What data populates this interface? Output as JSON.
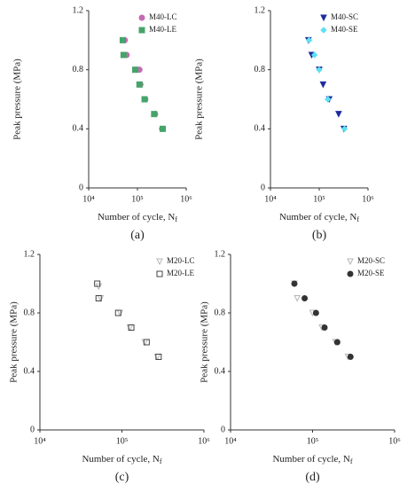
{
  "chart_data": [
    {
      "type": "scatter",
      "panel_label": "(a)",
      "xlabel": "Number of cycle, N",
      "xlabel_sub": "f",
      "ylabel": "Peak pressure (MPa)",
      "xscale": "log",
      "xlim": [
        10000,
        1000000
      ],
      "xticks": [
        {
          "value": 10000,
          "label": "10⁴"
        },
        {
          "value": 100000,
          "label": "10⁵"
        },
        {
          "value": 1000000,
          "label": "10⁶"
        }
      ],
      "ylim": [
        0,
        1.2
      ],
      "yticks": [
        0,
        0.4,
        0.8,
        1.2
      ],
      "legend": "upper right",
      "series": [
        {
          "name": "M40-LC",
          "color": "#c46bb5",
          "marker": "circle",
          "filled": true,
          "x": [
            55000,
            60000,
            110000,
            115000,
            145000,
            230000,
            320000
          ],
          "values": [
            1.0,
            0.9,
            0.8,
            0.7,
            0.6,
            0.5,
            0.4
          ]
        },
        {
          "name": "M40-LE",
          "color": "#46a46a",
          "marker": "square",
          "filled": true,
          "x": [
            50000,
            52000,
            90000,
            110000,
            140000,
            220000,
            330000
          ],
          "values": [
            1.0,
            0.9,
            0.8,
            0.7,
            0.6,
            0.5,
            0.4
          ]
        }
      ]
    },
    {
      "type": "scatter",
      "panel_label": "(b)",
      "xlabel": "Number of cycle, N",
      "xlabel_sub": "f",
      "ylabel": "Peak pressure (MPa)",
      "xscale": "log",
      "xlim": [
        10000,
        1000000
      ],
      "xticks": [
        {
          "value": 10000,
          "label": "10⁴"
        },
        {
          "value": 100000,
          "label": "10⁵"
        },
        {
          "value": 1000000,
          "label": "10⁶"
        }
      ],
      "ylim": [
        0,
        1.2
      ],
      "yticks": [
        0,
        0.4,
        0.8,
        1.2
      ],
      "legend": "upper right",
      "series": [
        {
          "name": "M40-SC",
          "color": "#1c2c9c",
          "marker": "triangle-down",
          "filled": true,
          "x": [
            60000,
            70000,
            100000,
            120000,
            160000,
            250000,
            320000
          ],
          "values": [
            1.0,
            0.9,
            0.8,
            0.7,
            0.6,
            0.5,
            0.4
          ]
        },
        {
          "name": "M40-SE",
          "color": "#5fe0f2",
          "marker": "diamond",
          "filled": true,
          "x": [
            62000,
            80000,
            100000,
            150000,
            330000
          ],
          "values": [
            1.0,
            0.9,
            0.8,
            0.6,
            0.4
          ]
        }
      ]
    },
    {
      "type": "scatter",
      "panel_label": "(c)",
      "xlabel": "Number of cycle, N",
      "xlabel_sub": "f",
      "ylabel": "Peak pressure (MPa)",
      "xscale": "log",
      "xlim": [
        10000,
        1000000
      ],
      "xticks": [
        {
          "value": 10000,
          "label": "10⁴"
        },
        {
          "value": 100000,
          "label": "10⁵"
        },
        {
          "value": 1000000,
          "label": "10⁶"
        }
      ],
      "ylim": [
        0,
        1.2
      ],
      "yticks": [
        0,
        0.4,
        0.8,
        1.2
      ],
      "legend": "upper right",
      "series": [
        {
          "name": "M20-LC",
          "color": "#b5b5b5",
          "marker": "triangle-down",
          "filled": false,
          "x": [
            52000,
            55000,
            95000,
            125000,
            190000,
            270000
          ],
          "values": [
            0.98,
            0.9,
            0.8,
            0.7,
            0.6,
            0.5
          ]
        },
        {
          "name": "M20-LE",
          "color": "#444444",
          "marker": "square",
          "filled": false,
          "x": [
            50000,
            52000,
            90000,
            130000,
            200000,
            280000
          ],
          "values": [
            1.0,
            0.9,
            0.8,
            0.7,
            0.6,
            0.5
          ]
        }
      ]
    },
    {
      "type": "scatter",
      "panel_label": "(d)",
      "xlabel": "Number of cycle, N",
      "xlabel_sub": "f",
      "ylabel": "Peak pressure (MPa)",
      "xscale": "log",
      "xlim": [
        10000,
        1000000
      ],
      "xticks": [
        {
          "value": 10000,
          "label": "10⁴"
        },
        {
          "value": 100000,
          "label": "10⁵"
        },
        {
          "value": 1000000,
          "label": "10⁶"
        }
      ],
      "ylim": [
        0,
        1.2
      ],
      "yticks": [
        0,
        0.4,
        0.8,
        1.2
      ],
      "legend": "upper right",
      "series": [
        {
          "name": "M20-SC",
          "color": "#b5b5b5",
          "marker": "triangle-down",
          "filled": false,
          "x": [
            60000,
            65000,
            100000,
            130000,
            190000,
            270000
          ],
          "values": [
            1.0,
            0.9,
            0.8,
            0.7,
            0.6,
            0.5
          ]
        },
        {
          "name": "M20-SE",
          "color": "#333333",
          "marker": "circle",
          "filled": true,
          "x": [
            60000,
            80000,
            110000,
            140000,
            200000,
            290000
          ],
          "values": [
            1.0,
            0.9,
            0.8,
            0.7,
            0.6,
            0.5
          ]
        }
      ]
    }
  ]
}
